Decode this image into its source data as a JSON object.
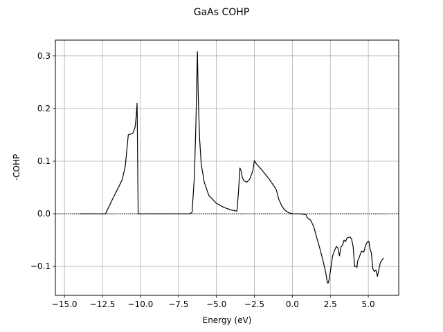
{
  "chart_data": {
    "type": "line",
    "title": "GaAs COHP",
    "xlabel": "Energy (eV)",
    "ylabel": "-COHP",
    "xlim": [
      -15.6,
      7.0
    ],
    "ylim": [
      -0.155,
      0.33
    ],
    "grid": true,
    "x_ticks": [
      -15.0,
      -12.5,
      -10.0,
      -7.5,
      -5.0,
      -2.5,
      0.0,
      2.5,
      5.0
    ],
    "x_tick_labels": [
      "−15.0",
      "−12.5",
      "−10.0",
      "−7.5",
      "−5.0",
      "−2.5",
      "0.0",
      "2.5",
      "5.0"
    ],
    "y_ticks": [
      -0.1,
      0.0,
      0.1,
      0.2,
      0.3
    ],
    "y_tick_labels": [
      "−0.1",
      "0.0",
      "0.1",
      "0.2",
      "0.3"
    ],
    "reference_line": {
      "y": 0.0,
      "style": "dotted",
      "color": "#000000"
    },
    "series": [
      {
        "name": "GaAs COHP",
        "color": "#000000",
        "x": [
          -14.0,
          -13.0,
          -12.3,
          -12.1,
          -11.8,
          -11.5,
          -11.2,
          -11.0,
          -10.9,
          -10.8,
          -10.5,
          -10.35,
          -10.28,
          -10.22,
          -10.15,
          -9.5,
          -8.5,
          -7.5,
          -6.9,
          -6.75,
          -6.6,
          -6.45,
          -6.35,
          -6.25,
          -6.2,
          -6.15,
          -6.1,
          -6.0,
          -5.8,
          -5.5,
          -5.0,
          -4.5,
          -4.0,
          -3.65,
          -3.55,
          -3.45,
          -3.38,
          -3.3,
          -3.2,
          -3.0,
          -2.8,
          -2.6,
          -2.5,
          -2.4,
          -2.0,
          -1.5,
          -1.15,
          -1.05,
          -0.9,
          -0.7,
          -0.5,
          -0.3,
          0.0,
          0.5,
          0.9,
          1.0,
          1.2,
          1.4,
          1.6,
          1.8,
          2.0,
          2.2,
          2.3,
          2.35,
          2.42,
          2.5,
          2.55,
          2.65,
          2.8,
          2.9,
          3.0,
          3.1,
          3.2,
          3.3,
          3.4,
          3.5,
          3.6,
          3.7,
          3.8,
          3.9,
          4.0,
          4.1,
          4.2,
          4.25,
          4.3,
          4.4,
          4.55,
          4.7,
          4.8,
          4.9,
          5.0,
          5.05,
          5.1,
          5.2,
          5.3,
          5.4,
          5.5,
          5.55,
          5.6,
          5.8,
          6.0
        ],
        "y": [
          0.0,
          0.0,
          0.0,
          0.012,
          0.03,
          0.047,
          0.065,
          0.09,
          0.12,
          0.15,
          0.153,
          0.165,
          0.185,
          0.21,
          0.0,
          0.0,
          0.0,
          0.0,
          0.0,
          0.0,
          0.003,
          0.07,
          0.17,
          0.308,
          0.23,
          0.18,
          0.14,
          0.095,
          0.06,
          0.035,
          0.02,
          0.012,
          0.007,
          0.005,
          0.04,
          0.087,
          0.082,
          0.07,
          0.063,
          0.06,
          0.066,
          0.082,
          0.101,
          0.096,
          0.083,
          0.065,
          0.05,
          0.045,
          0.028,
          0.015,
          0.007,
          0.003,
          0.0,
          0.0,
          -0.002,
          -0.008,
          -0.012,
          -0.024,
          -0.045,
          -0.065,
          -0.087,
          -0.112,
          -0.13,
          -0.132,
          -0.125,
          -0.11,
          -0.1,
          -0.08,
          -0.068,
          -0.062,
          -0.065,
          -0.08,
          -0.063,
          -0.06,
          -0.05,
          -0.053,
          -0.046,
          -0.045,
          -0.044,
          -0.048,
          -0.062,
          -0.1,
          -0.1,
          -0.102,
          -0.09,
          -0.083,
          -0.071,
          -0.073,
          -0.062,
          -0.055,
          -0.052,
          -0.054,
          -0.065,
          -0.075,
          -0.105,
          -0.11,
          -0.107,
          -0.113,
          -0.119,
          -0.092,
          -0.084
        ]
      }
    ]
  }
}
